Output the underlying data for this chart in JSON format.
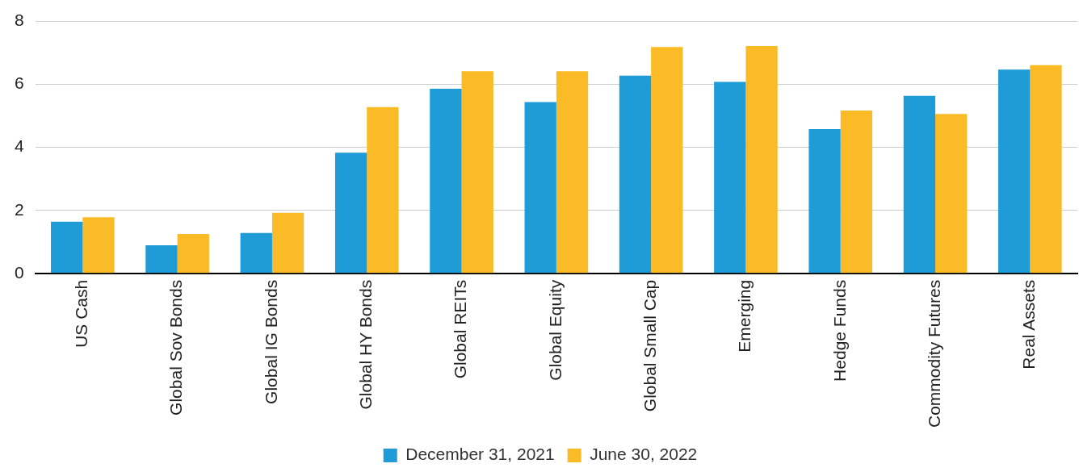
{
  "chart_data": {
    "type": "bar",
    "categories": [
      "US Cash",
      "Global Sov Bonds",
      "Global IG Bonds",
      "Global HY Bonds",
      "Global REITs",
      "Global Equity",
      "Global Small Cap",
      "Emerging",
      "Hedge Funds",
      "Commodity Futures",
      "Real Assets"
    ],
    "series": [
      {
        "name": "December 31, 2021",
        "color": "#1f9bd7",
        "values": [
          1.64,
          0.89,
          1.28,
          3.83,
          5.86,
          5.44,
          6.28,
          6.08,
          4.58,
          5.64,
          6.47
        ]
      },
      {
        "name": "June 30, 2022",
        "color": "#fbbb27",
        "values": [
          1.78,
          1.25,
          1.92,
          5.28,
          6.42,
          6.42,
          7.19,
          7.22,
          5.17,
          5.06,
          6.61
        ]
      }
    ],
    "ylim": [
      0,
      8
    ],
    "yticks": [
      0,
      2,
      4,
      6,
      8
    ],
    "grid": "y",
    "legend": "bottom"
  }
}
